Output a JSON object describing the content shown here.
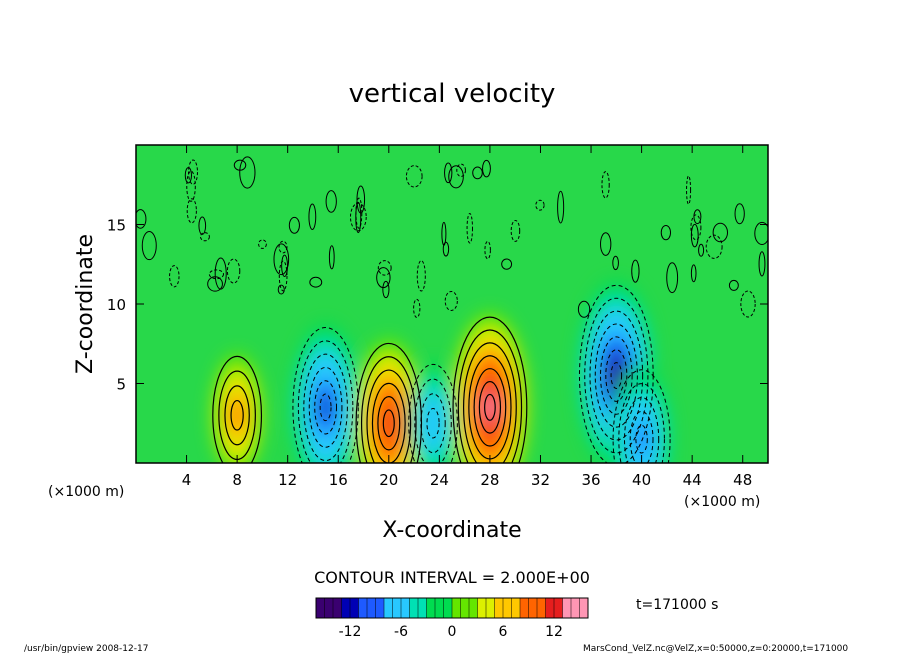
{
  "chart_data": {
    "type": "heatmap",
    "title": "vertical velocity",
    "xlabel": "X-coordinate",
    "ylabel": "Z-coordinate",
    "x_unit_left": "(×1000 m)",
    "x_unit_right": "(×1000 m)",
    "xlim": [
      0,
      50
    ],
    "ylim": [
      0,
      20
    ],
    "x_ticks": [
      4,
      8,
      12,
      16,
      20,
      24,
      28,
      32,
      36,
      40,
      44,
      48
    ],
    "y_ticks": [
      5,
      10,
      15
    ],
    "contour_interval_label": "CONTOUR INTERVAL = 2.000E+00",
    "time_label": "t=171000 s",
    "colorbar": {
      "range": [
        -16,
        16
      ],
      "ticks": [
        -12,
        -6,
        0,
        6,
        12
      ],
      "colors": [
        "#3a0070",
        "#0000b4",
        "#1e5aff",
        "#28c8ff",
        "#00e0b4",
        "#00dc50",
        "#64e600",
        "#dcf000",
        "#ffc800",
        "#ff6400",
        "#e61e1e",
        "#ff96b4"
      ]
    },
    "features": [
      {
        "label": "updraft",
        "x": 28,
        "z": 3.5,
        "w": 14
      },
      {
        "label": "downdraft",
        "x": 15,
        "z": 3.5,
        "w": -12
      },
      {
        "label": "updraft",
        "x": 20,
        "z": 2.5,
        "w": 12
      },
      {
        "label": "downdraft",
        "x": 23.5,
        "z": 2.5,
        "w": -8
      },
      {
        "label": "downdraft",
        "x": 38,
        "z": 5.5,
        "w": -14
      },
      {
        "label": "updraft",
        "x": 8,
        "z": 3,
        "w": 8
      },
      {
        "label": "downdraft",
        "x": 40,
        "z": 1.5,
        "w": -10
      }
    ]
  },
  "footer": {
    "program": "/usr/bin/gpview  2008-12-17",
    "source": "MarsCond_VelZ.nc@VelZ,x=0:50000,z=0:20000,t=171000"
  }
}
